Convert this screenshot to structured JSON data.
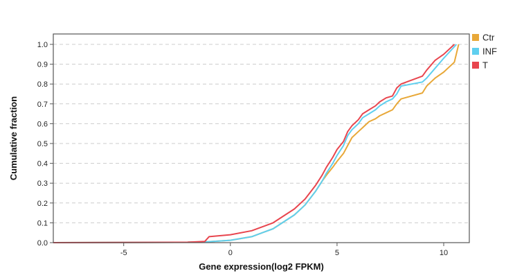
{
  "chart_data": {
    "type": "line",
    "title": "",
    "xlabel": "Gene expression(log2 FPKM)",
    "ylabel": "Cumulative fraction",
    "xlim": [
      -8.3,
      11.2
    ],
    "ylim": [
      0,
      1.05
    ],
    "xticks": [
      -5,
      0,
      5,
      10
    ],
    "xtick_labels": [
      "-5",
      "0",
      "5",
      "10"
    ],
    "yticks": [
      0.0,
      0.1,
      0.2,
      0.3,
      0.4,
      0.5,
      0.6,
      0.7,
      0.8,
      0.9,
      1.0
    ],
    "ytick_labels": [
      "0.0",
      "0.1",
      "0.2",
      "0.3",
      "0.4",
      "0.5",
      "0.6",
      "0.7",
      "0.8",
      "0.9",
      "1.0"
    ],
    "grid": "horizontal dashed",
    "legend_position": "right",
    "series": [
      {
        "name": "Ctr",
        "color": "#E8A838",
        "x": [
          -8.3,
          -2.0,
          -1.0,
          0.0,
          1.0,
          2.0,
          3.0,
          3.5,
          4.0,
          4.3,
          4.5,
          4.8,
          5.0,
          5.3,
          5.5,
          5.7,
          6.0,
          6.2,
          6.5,
          6.8,
          7.0,
          7.3,
          7.6,
          7.8,
          8.0,
          9.0,
          9.2,
          9.3,
          9.6,
          10.0,
          10.5,
          10.7
        ],
        "y": [
          0.0,
          0.002,
          0.005,
          0.012,
          0.03,
          0.07,
          0.14,
          0.19,
          0.26,
          0.31,
          0.34,
          0.38,
          0.41,
          0.45,
          0.49,
          0.53,
          0.56,
          0.58,
          0.61,
          0.625,
          0.64,
          0.655,
          0.67,
          0.7,
          0.725,
          0.755,
          0.79,
          0.8,
          0.83,
          0.86,
          0.91,
          1.0
        ]
      },
      {
        "name": "INF",
        "color": "#5FCFEF",
        "x": [
          -8.3,
          -2.0,
          -1.0,
          0.0,
          1.0,
          2.0,
          3.0,
          3.5,
          4.0,
          4.3,
          4.5,
          4.8,
          5.0,
          5.3,
          5.5,
          5.7,
          6.0,
          6.2,
          6.5,
          6.8,
          7.0,
          7.3,
          7.6,
          7.8,
          8.0,
          9.0,
          9.2,
          9.6,
          10.0,
          10.6
        ],
        "y": [
          0.0,
          0.002,
          0.005,
          0.012,
          0.03,
          0.07,
          0.14,
          0.19,
          0.26,
          0.31,
          0.35,
          0.4,
          0.44,
          0.49,
          0.54,
          0.57,
          0.6,
          0.63,
          0.65,
          0.67,
          0.69,
          0.71,
          0.725,
          0.75,
          0.79,
          0.81,
          0.83,
          0.88,
          0.93,
          1.0
        ]
      },
      {
        "name": "T",
        "color": "#E8454E",
        "x": [
          -8.3,
          -2.0,
          -1.2,
          -1.0,
          0.0,
          1.0,
          2.0,
          3.0,
          3.5,
          4.0,
          4.3,
          4.5,
          4.8,
          5.0,
          5.3,
          5.5,
          5.7,
          6.0,
          6.2,
          6.5,
          6.8,
          7.0,
          7.3,
          7.6,
          7.8,
          8.0,
          9.0,
          9.2,
          9.6,
          10.0,
          10.5
        ],
        "y": [
          0.0,
          0.002,
          0.006,
          0.03,
          0.04,
          0.06,
          0.1,
          0.17,
          0.22,
          0.29,
          0.34,
          0.38,
          0.43,
          0.47,
          0.51,
          0.56,
          0.59,
          0.62,
          0.65,
          0.67,
          0.69,
          0.71,
          0.73,
          0.74,
          0.78,
          0.8,
          0.84,
          0.87,
          0.92,
          0.95,
          1.0
        ]
      }
    ]
  }
}
